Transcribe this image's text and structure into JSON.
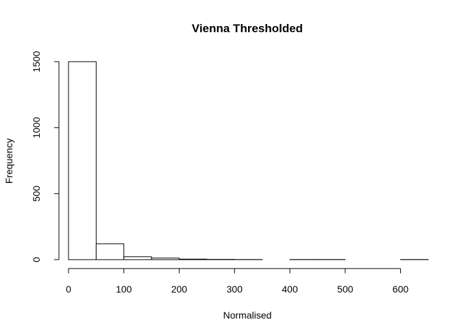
{
  "chart_data": {
    "type": "bar",
    "title": "Vienna Thresholded",
    "xlabel": "Normalised",
    "ylabel": "Frequency",
    "bins": [
      {
        "x0": 0,
        "x1": 50,
        "count": 1500
      },
      {
        "x0": 50,
        "x1": 100,
        "count": 120
      },
      {
        "x0": 100,
        "x1": 150,
        "count": 22
      },
      {
        "x0": 150,
        "x1": 200,
        "count": 12
      },
      {
        "x0": 200,
        "x1": 250,
        "count": 4
      },
      {
        "x0": 250,
        "x1": 300,
        "count": 2
      },
      {
        "x0": 300,
        "x1": 350,
        "count": 1
      },
      {
        "x0": 350,
        "x1": 400,
        "count": 0
      },
      {
        "x0": 400,
        "x1": 450,
        "count": 1
      },
      {
        "x0": 450,
        "x1": 500,
        "count": 1
      },
      {
        "x0": 500,
        "x1": 550,
        "count": 0
      },
      {
        "x0": 550,
        "x1": 600,
        "count": 0
      },
      {
        "x0": 600,
        "x1": 650,
        "count": 1
      }
    ],
    "xticks": [
      0,
      100,
      200,
      300,
      400,
      500,
      600
    ],
    "yticks": [
      0,
      500,
      1000,
      1500
    ],
    "xlim": [
      0,
      650
    ],
    "ylim": [
      0,
      1500
    ],
    "colors": {
      "bar_fill": "#ffffff",
      "bar_stroke": "#000000",
      "axis": "#000000"
    },
    "grid": false
  }
}
